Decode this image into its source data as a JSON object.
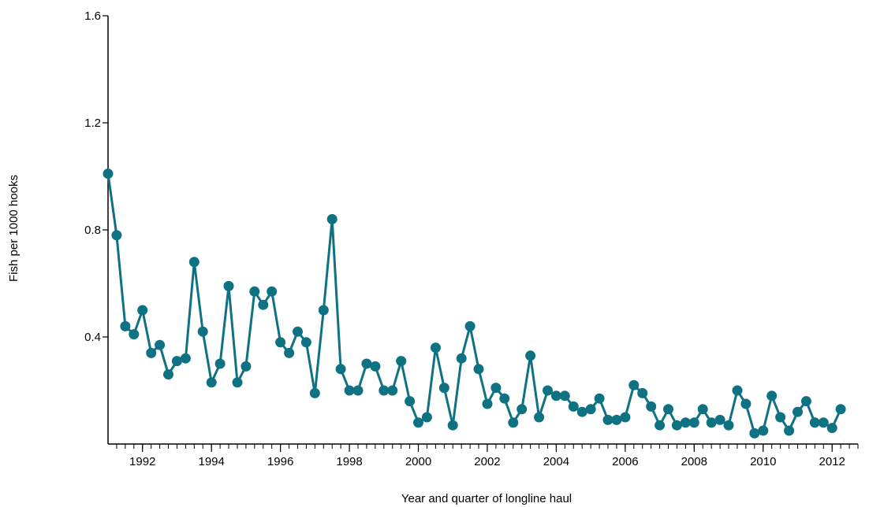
{
  "chart_data": {
    "type": "line",
    "title": "",
    "xlabel": "Year and quarter of longline haul",
    "ylabel": "Fish per 1000 hooks",
    "ylim": [
      0,
      1.6
    ],
    "yticks": [
      0.4,
      0.8,
      1.2,
      1.6
    ],
    "ytick_labels": [
      "0.4",
      "0.8",
      "1.2",
      "1.6"
    ],
    "xlim": [
      1991.0,
      2012.75
    ],
    "xticks": [
      1992,
      1994,
      1996,
      1998,
      2000,
      2002,
      2004,
      2006,
      2008,
      2010,
      2012
    ],
    "xtick_labels": [
      "1992",
      "1994",
      "1996",
      "1998",
      "2000",
      "2002",
      "2004",
      "2006",
      "2008",
      "2010",
      "2012"
    ],
    "x_minor_tick_step": 0.25,
    "grid": false,
    "legend": "none",
    "line_color": "#0f7283",
    "series": [
      {
        "x_start": 1991.0,
        "x_step": 0.25,
        "values": [
          1.01,
          0.78,
          0.44,
          0.41,
          0.5,
          0.34,
          0.37,
          0.26,
          0.31,
          0.32,
          0.68,
          0.42,
          0.23,
          0.3,
          0.59,
          0.23,
          0.29,
          0.57,
          0.52,
          0.57,
          0.38,
          0.34,
          0.42,
          0.38,
          0.19,
          0.5,
          0.84,
          0.28,
          0.2,
          0.2,
          0.3,
          0.29,
          0.2,
          0.2,
          0.31,
          0.16,
          0.08,
          0.1,
          0.36,
          0.21,
          0.07,
          0.32,
          0.44,
          0.28,
          0.15,
          0.21,
          0.17,
          0.08,
          0.13,
          0.33,
          0.1,
          0.2,
          0.18,
          0.18,
          0.14,
          0.12,
          0.13,
          0.17,
          0.09,
          0.09,
          0.1,
          0.22,
          0.19,
          0.14,
          0.07,
          0.13,
          0.07,
          0.08,
          0.08,
          0.13,
          0.08,
          0.09,
          0.07,
          0.2,
          0.15,
          0.04,
          0.05,
          0.18,
          0.1,
          0.05,
          0.12,
          0.16,
          0.08,
          0.08,
          0.06,
          0.13
        ]
      }
    ]
  }
}
